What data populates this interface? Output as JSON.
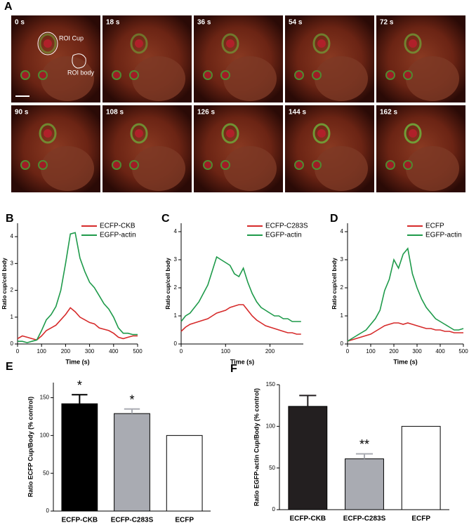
{
  "figure": {
    "panel_a": {
      "label": "A",
      "timepoints": [
        "0 s",
        "18 s",
        "36 s",
        "54 s",
        "72 s",
        "90 s",
        "108 s",
        "126 s",
        "144 s",
        "162 s"
      ],
      "roi_labels": [
        "ROI Cup",
        "ROI body"
      ]
    }
  },
  "chart_data": [
    {
      "type": "line",
      "panel": "B",
      "xlabel": "Time (s)",
      "ylabel": "Ratio cup/cell body",
      "x": [
        0,
        20,
        40,
        60,
        80,
        100,
        120,
        140,
        160,
        180,
        200,
        220,
        240,
        260,
        280,
        300,
        320,
        340,
        360,
        380,
        400,
        420,
        440,
        460,
        480,
        500
      ],
      "xlim": [
        0,
        500
      ],
      "xticks": [
        0,
        100,
        200,
        300,
        400,
        500
      ],
      "ylim": [
        0,
        4.5
      ],
      "yticks": [
        0,
        1,
        2,
        3,
        4
      ],
      "series": [
        {
          "name": "ECFP-CKB",
          "color": "#d62a2a",
          "values": [
            0.2,
            0.3,
            0.25,
            0.2,
            0.15,
            0.3,
            0.5,
            0.6,
            0.7,
            0.9,
            1.1,
            1.35,
            1.2,
            1.0,
            0.9,
            0.8,
            0.75,
            0.6,
            0.55,
            0.5,
            0.4,
            0.25,
            0.2,
            0.25,
            0.3,
            0.3
          ]
        },
        {
          "name": "EGFP-actin",
          "color": "#1e9a4a",
          "values": [
            0.1,
            0.1,
            0.05,
            0.1,
            0.15,
            0.5,
            0.9,
            1.1,
            1.4,
            2.0,
            3.0,
            4.1,
            4.15,
            3.2,
            2.7,
            2.3,
            2.1,
            1.8,
            1.5,
            1.3,
            1.0,
            0.6,
            0.4,
            0.4,
            0.35,
            0.35
          ]
        }
      ]
    },
    {
      "type": "line",
      "panel": "C",
      "xlabel": "Time (s)",
      "ylabel": "Ratio cup/cell body",
      "x": [
        0,
        10,
        20,
        30,
        40,
        50,
        60,
        70,
        80,
        90,
        100,
        110,
        120,
        130,
        140,
        150,
        160,
        170,
        180,
        190,
        200,
        210,
        220,
        230,
        240,
        250,
        260,
        270
      ],
      "xlim": [
        0,
        275
      ],
      "xticks": [
        0,
        100,
        200
      ],
      "ylim": [
        0,
        4.3
      ],
      "yticks": [
        0,
        1,
        2,
        3,
        4
      ],
      "series": [
        {
          "name": "ECFP-C283S",
          "color": "#d62a2a",
          "values": [
            0.45,
            0.6,
            0.7,
            0.75,
            0.8,
            0.85,
            0.9,
            1.0,
            1.1,
            1.15,
            1.2,
            1.3,
            1.35,
            1.4,
            1.4,
            1.2,
            1.0,
            0.85,
            0.75,
            0.65,
            0.6,
            0.55,
            0.5,
            0.45,
            0.4,
            0.4,
            0.35,
            0.35
          ]
        },
        {
          "name": "EGFP-actin",
          "color": "#1e9a4a",
          "values": [
            0.8,
            1.0,
            1.1,
            1.3,
            1.5,
            1.8,
            2.1,
            2.6,
            3.1,
            3.0,
            2.9,
            2.8,
            2.5,
            2.4,
            2.7,
            2.2,
            1.8,
            1.5,
            1.3,
            1.2,
            1.1,
            1.0,
            1.0,
            0.9,
            0.9,
            0.8,
            0.8,
            0.8
          ]
        }
      ]
    },
    {
      "type": "line",
      "panel": "D",
      "xlabel": "Time (s)",
      "ylabel": "Ratio cup/cell body",
      "x": [
        0,
        20,
        40,
        60,
        80,
        100,
        120,
        140,
        160,
        180,
        200,
        220,
        240,
        260,
        280,
        300,
        320,
        340,
        360,
        380,
        400,
        420,
        440,
        460,
        480,
        500
      ],
      "xlim": [
        0,
        500
      ],
      "xticks": [
        0,
        100,
        200,
        300,
        400,
        500
      ],
      "ylim": [
        0,
        4.3
      ],
      "yticks": [
        0,
        1,
        2,
        3,
        4
      ],
      "series": [
        {
          "name": "ECFP",
          "color": "#d62a2a",
          "values": [
            0.1,
            0.15,
            0.2,
            0.25,
            0.3,
            0.35,
            0.45,
            0.55,
            0.65,
            0.7,
            0.75,
            0.75,
            0.7,
            0.75,
            0.7,
            0.65,
            0.6,
            0.55,
            0.55,
            0.5,
            0.5,
            0.45,
            0.45,
            0.4,
            0.4,
            0.4
          ]
        },
        {
          "name": "EGFP-actin",
          "color": "#1e9a4a",
          "values": [
            0.1,
            0.2,
            0.3,
            0.4,
            0.5,
            0.7,
            0.9,
            1.2,
            1.9,
            2.3,
            3.0,
            2.7,
            3.2,
            3.4,
            2.5,
            2.0,
            1.6,
            1.3,
            1.1,
            0.9,
            0.8,
            0.7,
            0.6,
            0.5,
            0.5,
            0.55
          ]
        }
      ]
    },
    {
      "type": "bar",
      "panel": "E",
      "ylabel": "Ratio ECFP Cup/Body (% control)",
      "categories": [
        "ECFP-CKB",
        "ECFP-C283S",
        "ECFP"
      ],
      "values": [
        142,
        129,
        100
      ],
      "errors": [
        12,
        6,
        null
      ],
      "colors": [
        "#000000",
        "#a9abb2",
        "#ffffff"
      ],
      "annotations": [
        "*",
        "*",
        null
      ],
      "ylim": [
        0,
        170
      ],
      "yticks": [
        0,
        50,
        100,
        150
      ]
    },
    {
      "type": "bar",
      "panel": "F",
      "ylabel": "Ratio EGFP-actin Cup/Body (% control)",
      "categories": [
        "ECFP-CKB",
        "ECFP-C283S",
        "ECFP"
      ],
      "values": [
        124,
        61,
        100
      ],
      "errors": [
        13,
        6,
        null
      ],
      "colors": [
        "#231f20",
        "#a9abb2",
        "#ffffff"
      ],
      "annotations": [
        null,
        "**",
        null
      ],
      "ylim": [
        0,
        150
      ],
      "yticks": [
        0,
        50,
        100,
        150
      ]
    }
  ]
}
